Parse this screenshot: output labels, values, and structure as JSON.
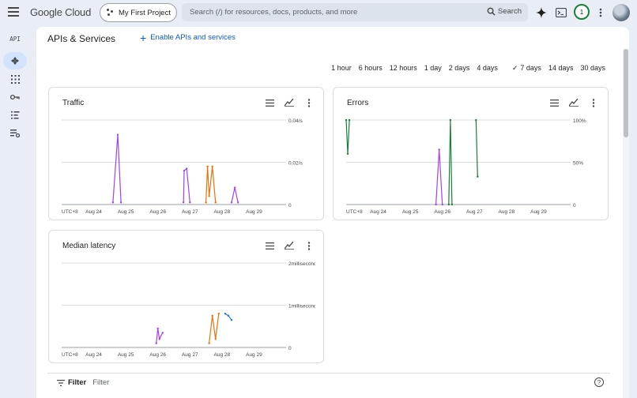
{
  "header": {
    "logo": "Google Cloud",
    "project": "My First Project",
    "search_placeholder": "Search (/) for resources, docs, products, and more",
    "search_button": "Search",
    "notification_count": "1"
  },
  "sidebar": {
    "logo": "API",
    "items": [
      "api-explorer-icon",
      "dashboard-icon",
      "key-icon",
      "list-icon",
      "settings-list-icon"
    ]
  },
  "page": {
    "title": "APIs & Services",
    "enable_button": "Enable APIs and services"
  },
  "time_ranges": {
    "options": [
      "1 hour",
      "6 hours",
      "12 hours",
      "1 day",
      "2 days",
      "4 days",
      "7 days",
      "14 days",
      "30 days"
    ],
    "selected": "7 days"
  },
  "cards": {
    "traffic": {
      "title": "Traffic"
    },
    "errors": {
      "title": "Errors"
    },
    "latency": {
      "title": "Median latency"
    }
  },
  "filter": {
    "label": "Filter",
    "placeholder": "Filter"
  },
  "chart_data": [
    {
      "type": "line",
      "title": "Traffic",
      "x_ticks": [
        "UTC+8",
        "Aug 24",
        "Aug 25",
        "Aug 26",
        "Aug 27",
        "Aug 28",
        "Aug 29"
      ],
      "y_ticks": [
        "0",
        "0.02/s",
        "0.04/s"
      ],
      "ylim": [
        0,
        0.04
      ],
      "series": [
        {
          "x": [
            1.6,
            1.75,
            1.85
          ],
          "values": [
            0.001,
            0.033,
            0.001
          ],
          "color": "#a142f4"
        },
        {
          "x": [
            3.8,
            3.82,
            3.9,
            4.0
          ],
          "values": [
            0.001,
            0.016,
            0.017,
            0.001
          ],
          "color": "#a142f4"
        },
        {
          "x": [
            4.5,
            4.55,
            4.6,
            4.7,
            4.8
          ],
          "values": [
            0.001,
            0.018,
            0.004,
            0.018,
            0.001
          ],
          "color": "#e8710a"
        },
        {
          "x": [
            5.3,
            5.4,
            5.5
          ],
          "values": [
            0.001,
            0.008,
            0.001
          ],
          "color": "#a142f4"
        }
      ],
      "grid": true
    },
    {
      "type": "line",
      "title": "Errors",
      "x_ticks": [
        "UTC+8",
        "Aug 24",
        "Aug 25",
        "Aug 26",
        "Aug 27",
        "Aug 28",
        "Aug 29"
      ],
      "y_ticks": [
        "0",
        "50%",
        "100%"
      ],
      "ylim": [
        0,
        100
      ],
      "series": [
        {
          "x": [
            0.0,
            0.05,
            0.1
          ],
          "values": [
            100,
            60,
            100
          ],
          "color": "#188038"
        },
        {
          "x": [
            3.2,
            3.25,
            3.3
          ],
          "values": [
            0,
            100,
            0
          ],
          "color": "#188038"
        },
        {
          "x": [
            4.05,
            4.1
          ],
          "values": [
            100,
            33
          ],
          "color": "#188038"
        },
        {
          "x": [
            2.8,
            2.9,
            3.0
          ],
          "values": [
            0,
            65,
            0
          ],
          "color": "#a142f4"
        }
      ],
      "grid": true
    },
    {
      "type": "line",
      "title": "Median latency",
      "x_ticks": [
        "UTC+8",
        "Aug 24",
        "Aug 25",
        "Aug 26",
        "Aug 27",
        "Aug 28",
        "Aug 29"
      ],
      "y_ticks": [
        "0",
        "1milliseconds",
        "2milliseconds"
      ],
      "ylim": [
        0,
        2
      ],
      "series": [
        {
          "x": [
            2.95,
            3.0,
            3.05,
            3.15
          ],
          "values": [
            0.1,
            0.45,
            0.2,
            0.35
          ],
          "color": "#a142f4"
        },
        {
          "x": [
            4.6,
            4.7,
            4.8,
            4.9
          ],
          "values": [
            0.1,
            0.75,
            0.2,
            0.8
          ],
          "color": "#e8710a"
        },
        {
          "x": [
            5.1,
            5.2,
            5.3
          ],
          "values": [
            0.8,
            0.75,
            0.65
          ],
          "color": "#1a73e8"
        }
      ],
      "grid": true
    }
  ]
}
